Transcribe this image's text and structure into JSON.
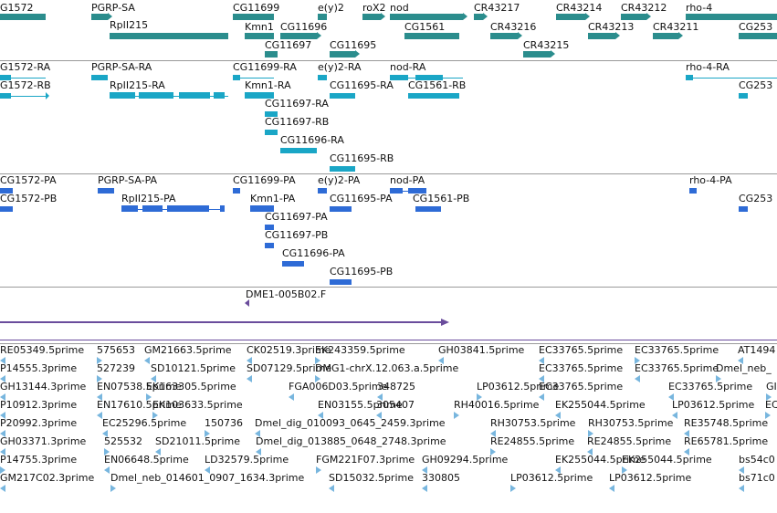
{
  "colors": {
    "gene": "#2b8d8d",
    "rna": "#1aa6c6",
    "protein": "#2e6bd6",
    "contig": "#6a4c9c",
    "est": "#78b6de"
  },
  "gene_track": [
    {
      "label": "G1572"
    },
    {
      "label": "PGRP-SA"
    },
    {
      "label": "RpII215"
    },
    {
      "label": "CG11699"
    },
    {
      "label": "Kmn1"
    },
    {
      "label": "CG11696"
    },
    {
      "label": "CG11697"
    },
    {
      "label": "CG11695"
    },
    {
      "label": "e(y)2"
    },
    {
      "label": "roX2"
    },
    {
      "label": "nod"
    },
    {
      "label": "CG1561"
    },
    {
      "label": "CR43217"
    },
    {
      "label": "CR43216"
    },
    {
      "label": "CR43215"
    },
    {
      "label": "CR43214"
    },
    {
      "label": "CR43213"
    },
    {
      "label": "CR43212"
    },
    {
      "label": "CR43211"
    },
    {
      "label": "rho-4"
    },
    {
      "label": "CG253"
    }
  ],
  "rna_track": [
    {
      "label": "G1572-RA"
    },
    {
      "label": "G1572-RB"
    },
    {
      "label": "PGRP-SA-RA"
    },
    {
      "label": "RpII215-RA"
    },
    {
      "label": "CG11699-RA"
    },
    {
      "label": "Kmn1-RA"
    },
    {
      "label": "CG11697-RA"
    },
    {
      "label": "CG11697-RB"
    },
    {
      "label": "CG11696-RA"
    },
    {
      "label": "CG11695-RA"
    },
    {
      "label": "CG11695-RB"
    },
    {
      "label": "e(y)2-RA"
    },
    {
      "label": "nod-RA"
    },
    {
      "label": "CG1561-RB"
    },
    {
      "label": "rho-4-RA"
    },
    {
      "label": "CG253"
    }
  ],
  "protein_track": [
    {
      "label": "CG1572-PA"
    },
    {
      "label": "CG1572-PB"
    },
    {
      "label": "PGRP-SA-PA"
    },
    {
      "label": "RpII215-PA"
    },
    {
      "label": "CG11699-PA"
    },
    {
      "label": "Kmn1-PA"
    },
    {
      "label": "CG11697-PA"
    },
    {
      "label": "CG11697-PB"
    },
    {
      "label": "CG11696-PA"
    },
    {
      "label": "CG11695-PA"
    },
    {
      "label": "CG11695-PB"
    },
    {
      "label": "e(y)2-PA"
    },
    {
      "label": "nod-PA"
    },
    {
      "label": "CG1561-PB"
    },
    {
      "label": "rho-4-PA"
    },
    {
      "label": "CG253"
    }
  ],
  "contig_track": [
    {
      "label": "DME1-005B02.F"
    }
  ],
  "est_track": [
    {
      "label": "RE05349.5prime"
    },
    {
      "label": "575653"
    },
    {
      "label": "GM21663.5prime"
    },
    {
      "label": "CK02519.3prime"
    },
    {
      "label": "EK243359.5prime"
    },
    {
      "label": "GH03841.5prime"
    },
    {
      "label": "EC33765.5prime"
    },
    {
      "label": "EC33765.5prime"
    },
    {
      "label": "AT1494"
    },
    {
      "label": "P14555.3prime"
    },
    {
      "label": "527239"
    },
    {
      "label": "SD10121.5prime"
    },
    {
      "label": "SD07129.5prime"
    },
    {
      "label": "DMG1-chrX.12.063.a.5prime"
    },
    {
      "label": "EC33765.5prime"
    },
    {
      "label": "EC33765.5prime"
    },
    {
      "label": "Dmel_neb_"
    },
    {
      "label": "GH13144.3prime"
    },
    {
      "label": "EN07538.5prime"
    },
    {
      "label": "EK163305.5prime"
    },
    {
      "label": "FGA006D03.5prime"
    },
    {
      "label": "348725"
    },
    {
      "label": "LP03612.5prime"
    },
    {
      "label": "EC33765.5prime"
    },
    {
      "label": "EC33765.5prime"
    },
    {
      "label": "GI"
    },
    {
      "label": "P10912.3prime"
    },
    {
      "label": "EN17610.5prime"
    },
    {
      "label": "EK103633.5prime"
    },
    {
      "label": "EN03155.5prime"
    },
    {
      "label": "305407"
    },
    {
      "label": "RH40016.5prime"
    },
    {
      "label": "EK255044.5prime"
    },
    {
      "label": "LP03612.5prime"
    },
    {
      "label": "EC"
    },
    {
      "label": "P20992.3prime"
    },
    {
      "label": "EC25296.5prime"
    },
    {
      "label": "150736"
    },
    {
      "label": "Dmel_dig_010093_0645_2459.3prime"
    },
    {
      "label": "RH30753.5prime"
    },
    {
      "label": "RH30753.5prime"
    },
    {
      "label": "RE35748.5prime"
    },
    {
      "label": "GH03371.3prime"
    },
    {
      "label": "525532"
    },
    {
      "label": "SD21011.5prime"
    },
    {
      "label": "Dmel_dig_013885_0648_2748.3prime"
    },
    {
      "label": "RE24855.5prime"
    },
    {
      "label": "RE24855.5prime"
    },
    {
      "label": "RE65781.5prime"
    },
    {
      "label": "P14755.3prime"
    },
    {
      "label": "EN06648.5prime"
    },
    {
      "label": "LD32579.5prime"
    },
    {
      "label": "FGM221F07.3prime"
    },
    {
      "label": "GH09294.5prime"
    },
    {
      "label": "EK255044.5prime"
    },
    {
      "label": "EK255044.5prime"
    },
    {
      "label": "bs54c0"
    },
    {
      "label": "GM217C02.3prime"
    },
    {
      "label": "Dmel_neb_014601_0907_1634.3prime"
    },
    {
      "label": "SD15032.5prime"
    },
    {
      "label": "330805"
    },
    {
      "label": "LP03612.5prime"
    },
    {
      "label": "LP03612.5prime"
    },
    {
      "label": "bs71c0"
    }
  ]
}
